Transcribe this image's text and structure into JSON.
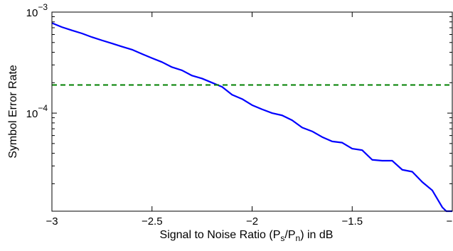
{
  "chart_data": {
    "type": "line",
    "xlabel_parts": [
      "Signal to Noise Ratio (P",
      "s",
      "/P",
      "n",
      ") in dB"
    ],
    "ylabel": "Symbol Error Rate",
    "x_ticks": [
      -3,
      -2.5,
      -2,
      -1.5,
      -1
    ],
    "x_tick_labels": [
      "−3",
      "−2.5",
      "−2",
      "−1.5",
      "−1"
    ],
    "y_ticks": [
      0.0001,
      0.001
    ],
    "y_tick_labels": [
      {
        "base": "10",
        "exp": "−4"
      },
      {
        "base": "10",
        "exp": "−3"
      }
    ],
    "xlim": [
      -3,
      -1
    ],
    "ylim": [
      1.07e-05,
      0.001
    ],
    "y_scale": "log",
    "grid": false,
    "series": [
      {
        "color": "#0000ff",
        "style": "solid",
        "x": [
          -3,
          -2.95,
          -2.9,
          -2.85,
          -2.8,
          -2.75,
          -2.7,
          -2.65,
          -2.6,
          -2.55,
          -2.5,
          -2.45,
          -2.4,
          -2.35,
          -2.3,
          -2.25,
          -2.2,
          -2.15,
          -2.1,
          -2.05,
          -2.0,
          -1.95,
          -1.9,
          -1.85,
          -1.8,
          -1.75,
          -1.7,
          -1.65,
          -1.6,
          -1.55,
          -1.5,
          -1.45,
          -1.4,
          -1.35,
          -1.3,
          -1.25,
          -1.2,
          -1.15,
          -1.1,
          -1.05,
          -1.03,
          -1.0
        ],
        "y": [
          0.00078,
          0.00071,
          0.00066,
          0.000615,
          0.000565,
          0.000525,
          0.00049,
          0.000455,
          0.000425,
          0.000385,
          0.00035,
          0.00032,
          0.000285,
          0.000265,
          0.000235,
          0.00022,
          0.0002,
          0.000182,
          0.000152,
          0.000138,
          0.00012,
          0.000109,
          0.0001,
          9.5e-05,
          8.5e-05,
          7.2e-05,
          6.6e-05,
          5.8e-05,
          5.25e-05,
          5.1e-05,
          4.45e-05,
          4.3e-05,
          3.45e-05,
          3.38e-05,
          3.38e-05,
          2.75e-05,
          2.63e-05,
          2.08e-05,
          1.72e-05,
          1.17e-05,
          1.07e-05,
          1.07e-05
        ]
      },
      {
        "color": "#008000",
        "style": "dashed",
        "x": [
          -3,
          -1
        ],
        "y": [
          0.00019,
          0.00019
        ]
      }
    ]
  }
}
